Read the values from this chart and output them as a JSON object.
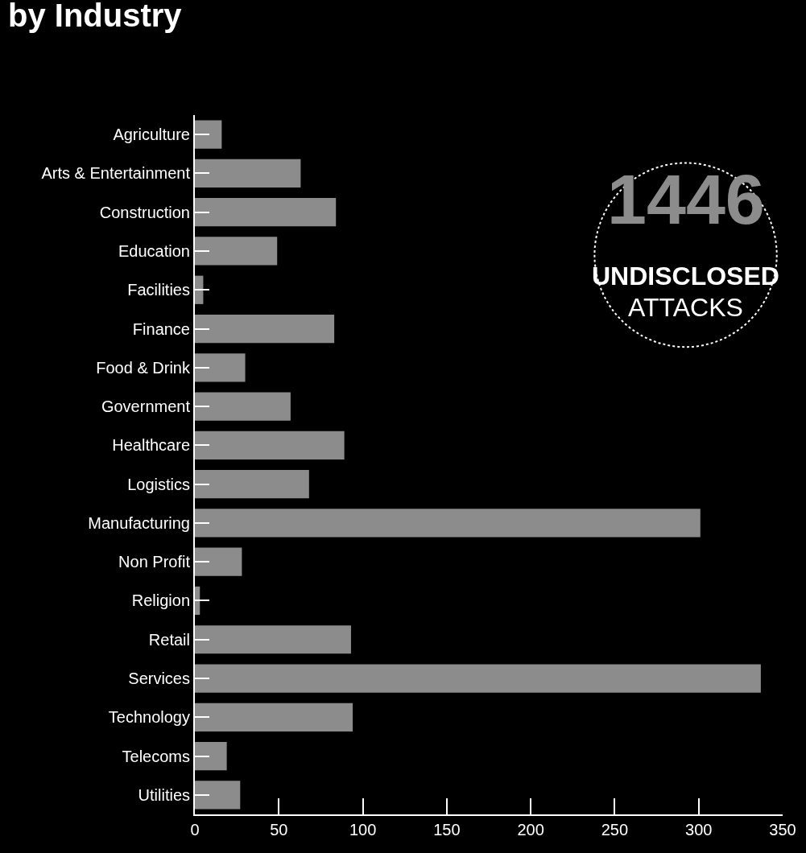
{
  "chart_data": {
    "type": "bar",
    "orientation": "horizontal",
    "title": "by Industry",
    "categories": [
      "Agriculture",
      "Arts & Entertainment",
      "Construction",
      "Education",
      "Facilities",
      "Finance",
      "Food & Drink",
      "Government",
      "Healthcare",
      "Logistics",
      "Manufacturing",
      "Non Profit",
      "Religion",
      "Retail",
      "Services",
      "Technology",
      "Telecoms",
      "Utilities"
    ],
    "values": [
      16,
      63,
      84,
      49,
      5,
      83,
      30,
      57,
      89,
      68,
      301,
      28,
      3,
      93,
      337,
      94,
      19,
      27
    ],
    "color": "#8c8c8c",
    "xlim": [
      0,
      350
    ],
    "xticks": [
      0,
      50,
      100,
      150,
      200,
      250,
      300,
      350
    ],
    "grid": false,
    "legend": false,
    "annotations": [
      "1446",
      "UNDISCLOSED",
      "ATTACKS"
    ]
  }
}
